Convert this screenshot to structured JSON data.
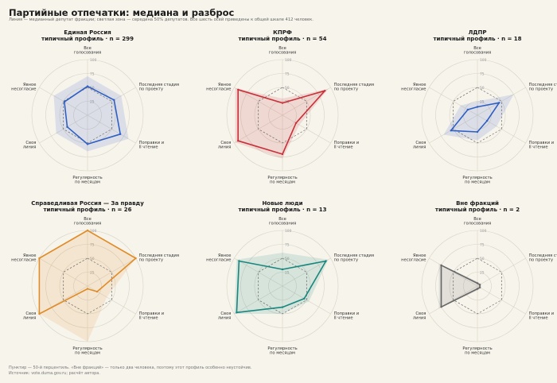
{
  "title": "Партийные отпечатки: медиана и разброс",
  "subtitle": "Линия — медианный депутат фракции; светлая зона — середина 50% депутатов. Все шесть осей приведены к общей шкале 412 человек.",
  "footnote": [
    "Пунктир — 50-й перцентиль. «Вне фракций» — только два человека, поэтому этот профиль особенно неустойчив.",
    "Источник: vote.duma.gov.ru; расчёт автора."
  ],
  "axes": [
    [
      "Все",
      "голосования"
    ],
    [
      "Последняя стадия",
      "по проекту"
    ],
    [
      "Поправки и",
      "II чтение"
    ],
    [
      "Регулярность",
      "по месяцам"
    ],
    [
      "Своя",
      "линия"
    ],
    [
      "Явное",
      "несогласие"
    ]
  ],
  "radial_ticks": [
    "25",
    "50",
    "75",
    "100"
  ],
  "chart_data": [
    {
      "type": "radar",
      "title": "Единая Россия",
      "subtitle": "типичный профиль · n = 299",
      "color": "#2f5fc4",
      "scale": [
        0,
        100
      ],
      "reference": 50,
      "median": [
        52,
        55,
        68,
        52,
        42,
        48
      ],
      "iqr_low": [
        35,
        30,
        35,
        35,
        25,
        35
      ],
      "iqr_high": [
        70,
        70,
        85,
        65,
        65,
        70
      ]
    },
    {
      "type": "radar",
      "title": "КПРФ",
      "subtitle": "типичный профиль · n = 54",
      "color": "#c8303a",
      "scale": [
        0,
        100
      ],
      "reference": 50,
      "median": [
        22,
        88,
        28,
        70,
        92,
        92
      ],
      "iqr_low": [
        15,
        80,
        20,
        60,
        85,
        85
      ],
      "iqr_high": [
        30,
        95,
        35,
        78,
        98,
        98
      ]
    },
    {
      "type": "radar",
      "title": "ЛДПР",
      "subtitle": "типичный профиль · n = 18",
      "color": "#2f5fc4",
      "scale": [
        0,
        100
      ],
      "reference": 50,
      "median": [
        15,
        45,
        20,
        30,
        55,
        20
      ],
      "iqr_low": [
        8,
        35,
        10,
        20,
        40,
        10
      ],
      "iqr_high": [
        25,
        75,
        40,
        45,
        70,
        35
      ]
    },
    {
      "type": "radar",
      "title": "Справедливая Россия — За правду",
      "subtitle": "типичный профиль · n = 26",
      "color": "#e08c28",
      "scale": [
        0,
        100
      ],
      "reference": 50,
      "median": [
        100,
        100,
        20,
        5,
        100,
        100
      ],
      "iqr_low": [
        90,
        60,
        10,
        5,
        90,
        90
      ],
      "iqr_high": [
        100,
        100,
        40,
        100,
        100,
        100
      ]
    },
    {
      "type": "radar",
      "title": "Новые люди",
      "subtitle": "типичный профиль · n = 13",
      "color": "#17877e",
      "scale": [
        0,
        100
      ],
      "reference": 50,
      "median": [
        30,
        90,
        45,
        38,
        95,
        90
      ],
      "iqr_low": [
        20,
        80,
        35,
        30,
        90,
        85
      ],
      "iqr_high": [
        60,
        95,
        55,
        50,
        100,
        95
      ]
    },
    {
      "type": "radar",
      "title": "Вне фракций",
      "subtitle": "типичный профиль · n = 2",
      "color": "#666",
      "scale": [
        0,
        100
      ],
      "reference": 50,
      "median": [
        5,
        5,
        5,
        5,
        75,
        75
      ],
      "iqr_low": [
        3,
        3,
        3,
        3,
        70,
        70
      ],
      "iqr_high": [
        8,
        8,
        8,
        8,
        80,
        80
      ]
    }
  ]
}
